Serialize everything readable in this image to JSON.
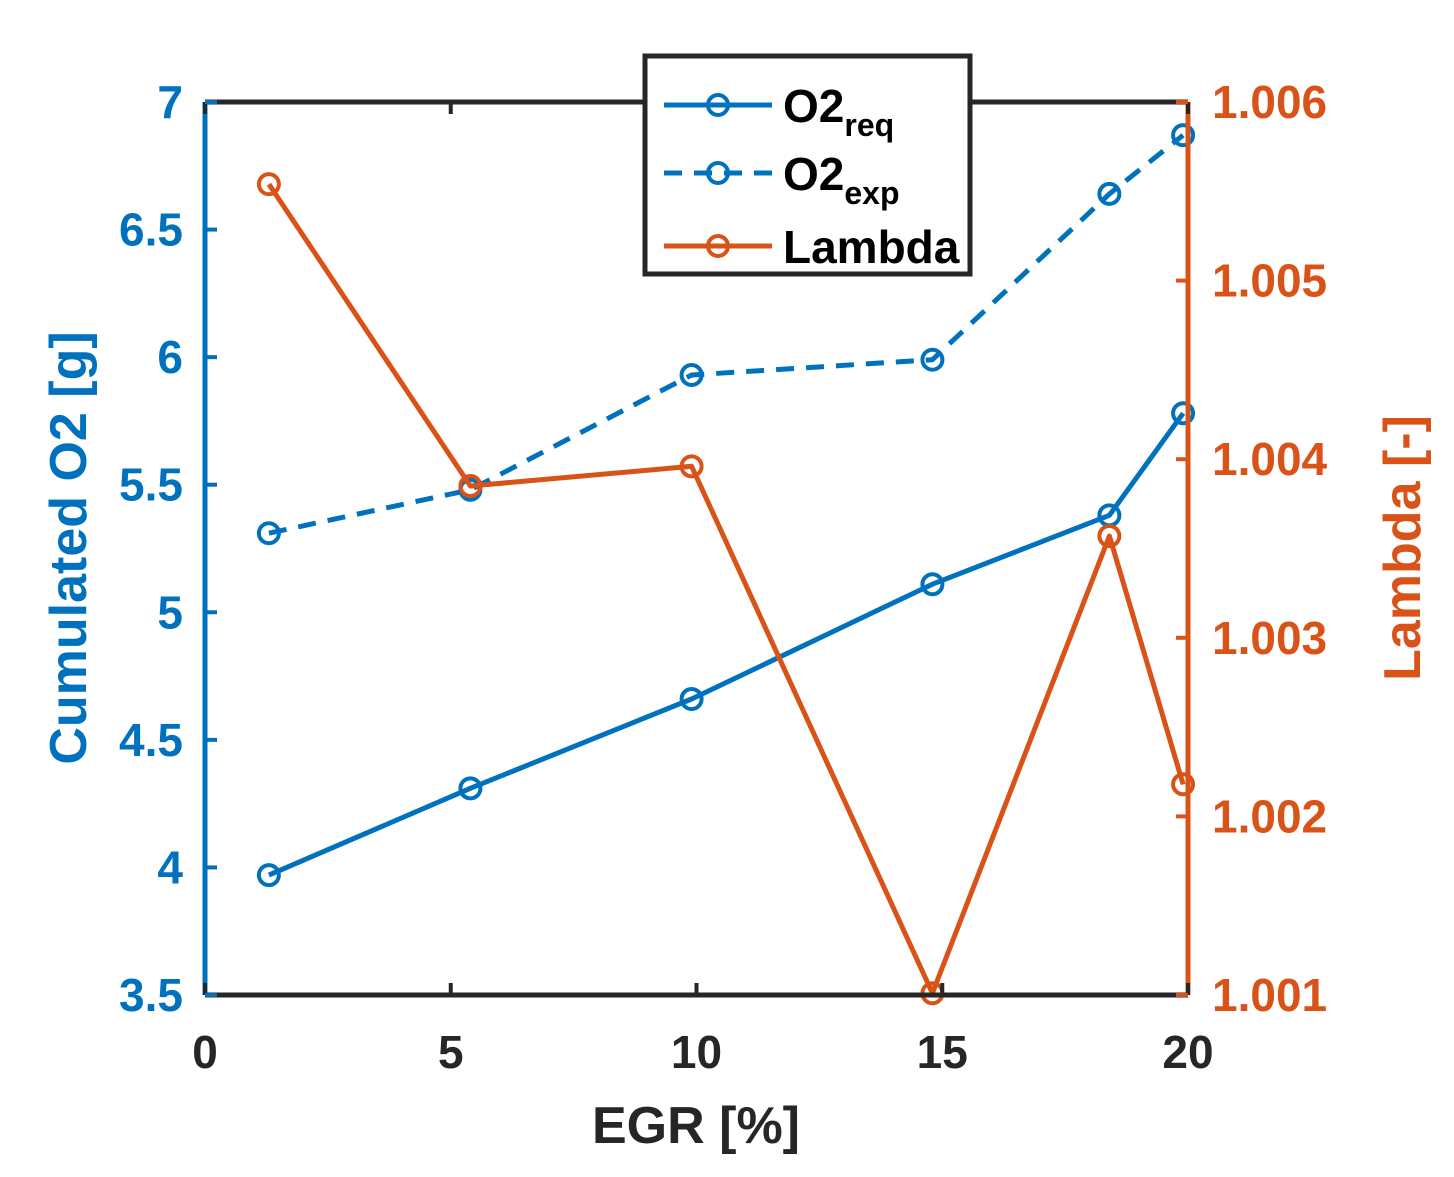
{
  "chart_data": {
    "type": "line",
    "title": "",
    "xlabel": "EGR [%]",
    "ylabel_left": "Cumulated O2 [g]",
    "ylabel_right": "Lambda [-]",
    "xlim": [
      0,
      20
    ],
    "ylim_left": [
      3.5,
      7
    ],
    "ylim_right": [
      1.001,
      1.006
    ],
    "x_ticks": [
      "0",
      "5",
      "10",
      "15",
      "20"
    ],
    "y_left_ticks": [
      "3.5",
      "4",
      "4.5",
      "5",
      "5.5",
      "6",
      "6.5",
      "7"
    ],
    "y_right_ticks": [
      "1.001",
      "1.002",
      "1.003",
      "1.004",
      "1.005",
      "1.006"
    ],
    "grid": false,
    "legend_position": "top-center",
    "series": [
      {
        "name": "O2",
        "subscript": "req",
        "axis": "left",
        "style": "solid",
        "marker": "circle",
        "color": "#0072BD",
        "x": [
          1.3,
          5.4,
          9.9,
          14.8,
          18.4,
          19.9
        ],
        "values": [
          3.97,
          4.31,
          4.66,
          5.11,
          5.38,
          5.78
        ]
      },
      {
        "name": "O2",
        "subscript": "exp",
        "axis": "left",
        "style": "dashed",
        "marker": "circle",
        "color": "#0072BD",
        "x": [
          1.3,
          5.4,
          9.9,
          14.8,
          18.4,
          19.9
        ],
        "values": [
          5.31,
          5.48,
          5.93,
          5.99,
          6.64,
          6.87
        ]
      },
      {
        "name": "Lambda",
        "subscript": "",
        "axis": "right",
        "style": "solid",
        "marker": "circle",
        "color": "#D95319",
        "x": [
          1.3,
          5.4,
          9.9,
          14.8,
          18.4,
          19.9
        ],
        "values": [
          1.00554,
          1.00385,
          1.00396,
          1.00101,
          1.00357,
          1.00218
        ]
      }
    ]
  }
}
